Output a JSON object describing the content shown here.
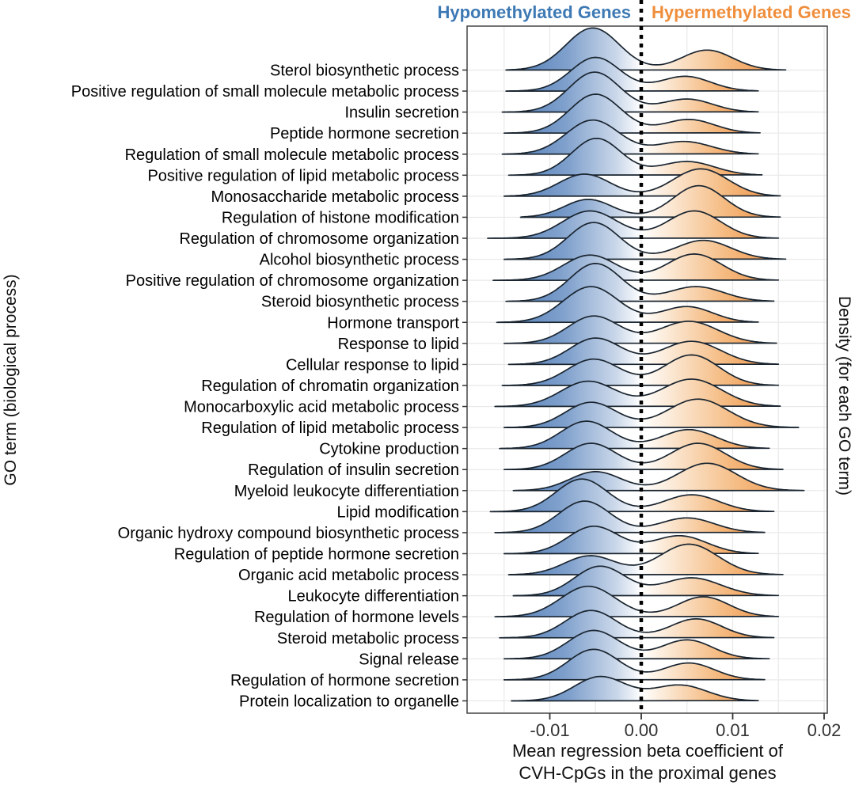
{
  "header": {
    "left_label": "Hypomethylated Genes",
    "right_label": "Hypermethylated Genes"
  },
  "colors": {
    "background": "#FFFFFF",
    "hypo_header": "#3D79B4",
    "hyper_header": "#EF8E3C",
    "blue_deep": "#4C7AB5",
    "blue_mid": "#7FA0CC",
    "blue_light": "#CBD8EA",
    "white_center": "#FFFFFF",
    "orange_pale": "#FBE7D2",
    "orange_mid": "#F5BB82",
    "orange_deep": "#EE8E3E",
    "curve_stroke": "#1A2530",
    "grid": "#E8E8E8",
    "border": "#444444",
    "tick": "#333333",
    "text": "#000000",
    "zero_line": "#000000"
  },
  "chart_data": {
    "type": "ridgeline",
    "title": "",
    "xlabel": [
      "Mean regression beta coefficient of",
      "CVH-CpGs in the proximal genes"
    ],
    "ylabel_left": "GO term (biological process)",
    "ylabel_right": "Density (for each GO term)",
    "xlim": [
      -0.0185,
      0.0205
    ],
    "x_ticks": [
      -0.01,
      0.0,
      0.01,
      0.02
    ],
    "x_tick_labels": [
      "-0.01",
      "0.00",
      "0.01",
      "0.02"
    ],
    "x_minor_gridlines": [
      -0.015,
      -0.005,
      0.005,
      0.015
    ],
    "zero_reference_line": 0.0,
    "grid": "on",
    "groups": [
      {
        "name": "Hypomethylated Genes",
        "side": "negative",
        "color": "#3D79B4"
      },
      {
        "name": "Hypermethylated Genes",
        "side": "positive",
        "color": "#EF8E3C"
      }
    ],
    "density_columns": [
      "label",
      "hypo_mode",
      "hypo_peak_density",
      "hypo_sd",
      "hyper_mode",
      "hyper_peak_density",
      "hyper_sd",
      "x_min",
      "x_max"
    ],
    "terms": [
      [
        "Sterol biosynthetic process",
        -0.0053,
        2.0,
        0.0029,
        0.0072,
        0.95,
        0.0028,
        -0.0148,
        0.0158
      ],
      [
        "Positive regulation of small molecule metabolic process",
        -0.005,
        1.6,
        0.0027,
        0.0048,
        0.7,
        0.0028,
        -0.0148,
        0.0128
      ],
      [
        "Insulin secretion",
        -0.0051,
        1.9,
        0.0028,
        0.005,
        0.62,
        0.0028,
        -0.0152,
        0.0128
      ],
      [
        "Peptide hormone secretion",
        -0.005,
        1.85,
        0.0028,
        0.0052,
        0.65,
        0.0028,
        -0.015,
        0.013
      ],
      [
        "Regulation of small molecule metabolic process",
        -0.0053,
        1.62,
        0.0029,
        0.0047,
        0.6,
        0.003,
        -0.0152,
        0.0128
      ],
      [
        "Positive regulation of lipid metabolic process",
        -0.0049,
        1.75,
        0.0027,
        0.005,
        0.65,
        0.003,
        -0.0145,
        0.0132
      ],
      [
        "Monosaccharide metabolic process",
        -0.0062,
        1.05,
        0.0028,
        0.0065,
        1.3,
        0.003,
        -0.015,
        0.0152
      ],
      [
        "Regulation of histone modification",
        -0.0058,
        0.85,
        0.0026,
        0.0063,
        1.5,
        0.0028,
        -0.0132,
        0.0152
      ],
      [
        "Regulation of chromosome organization",
        -0.0056,
        1.3,
        0.003,
        0.0058,
        1.3,
        0.0029,
        -0.0168,
        0.015
      ],
      [
        "Alcohol biosynthetic process",
        -0.0052,
        1.75,
        0.0028,
        0.0068,
        0.9,
        0.003,
        -0.015,
        0.0158
      ],
      [
        "Positive regulation of chromosome organization",
        -0.0056,
        1.2,
        0.0029,
        0.0058,
        1.25,
        0.003,
        -0.0162,
        0.015
      ],
      [
        "Steroid biosynthetic process",
        -0.005,
        1.8,
        0.0028,
        0.006,
        0.7,
        0.003,
        -0.0148,
        0.0145
      ],
      [
        "Hormone transport",
        -0.0055,
        1.7,
        0.003,
        0.005,
        0.75,
        0.0028,
        -0.0158,
        0.0128
      ],
      [
        "Response to lipid",
        -0.0052,
        1.3,
        0.0028,
        0.0052,
        1.05,
        0.0032,
        -0.015,
        0.0148
      ],
      [
        "Cellular response to lipid",
        -0.005,
        1.25,
        0.0028,
        0.0055,
        1.1,
        0.0032,
        -0.0145,
        0.015
      ],
      [
        "Regulation of chromatin organization",
        -0.0052,
        1.25,
        0.0029,
        0.0055,
        1.45,
        0.003,
        -0.0152,
        0.015
      ],
      [
        "Monocarboxylic acid metabolic process",
        -0.0058,
        1.2,
        0.003,
        0.0055,
        1.3,
        0.0033,
        -0.016,
        0.0152
      ],
      [
        "Regulation of lipid metabolic process",
        -0.0055,
        1.2,
        0.0028,
        0.0062,
        1.35,
        0.0033,
        -0.015,
        0.0172
      ],
      [
        "Cytokine production",
        -0.006,
        1.3,
        0.0028,
        0.0052,
        0.9,
        0.003,
        -0.0155,
        0.014
      ],
      [
        "Regulation of insulin secretion",
        -0.0055,
        1.25,
        0.0028,
        0.0062,
        1.25,
        0.003,
        -0.015,
        0.0155
      ],
      [
        "Myeloid leukocyte differentiation",
        -0.005,
        0.9,
        0.0028,
        0.0072,
        1.3,
        0.0032,
        -0.014,
        0.0178
      ],
      [
        "Lipid modification",
        -0.0065,
        1.55,
        0.0028,
        0.0055,
        0.8,
        0.003,
        -0.0165,
        0.0145
      ],
      [
        "Organic hydroxy compound biosynthetic process",
        -0.0062,
        1.5,
        0.0028,
        0.005,
        0.7,
        0.003,
        -0.016,
        0.0135
      ],
      [
        "Regulation of peptide hormone secretion",
        -0.0052,
        1.3,
        0.0028,
        0.0042,
        0.85,
        0.003,
        -0.015,
        0.0128
      ],
      [
        "Organic acid metabolic process",
        -0.0056,
        0.9,
        0.0028,
        0.0052,
        1.45,
        0.0032,
        -0.0145,
        0.0155
      ],
      [
        "Leukocyte differentiation",
        -0.0045,
        1.4,
        0.0028,
        0.0055,
        0.85,
        0.0032,
        -0.014,
        0.015
      ],
      [
        "Regulation of hormone levels",
        -0.0058,
        1.45,
        0.003,
        0.0068,
        0.95,
        0.0028,
        -0.016,
        0.015
      ],
      [
        "Steroid metabolic process",
        -0.0055,
        1.3,
        0.0028,
        0.006,
        0.9,
        0.0028,
        -0.0155,
        0.0145
      ],
      [
        "Signal release",
        -0.0052,
        1.35,
        0.0028,
        0.005,
        0.9,
        0.0028,
        -0.015,
        0.014
      ],
      [
        "Regulation of hormone secretion",
        -0.0052,
        1.45,
        0.0028,
        0.0052,
        0.8,
        0.0028,
        -0.015,
        0.0135
      ],
      [
        "Protein localization to organelle",
        -0.0045,
        1.15,
        0.0028,
        0.0042,
        0.75,
        0.003,
        -0.0142,
        0.0128
      ]
    ]
  }
}
